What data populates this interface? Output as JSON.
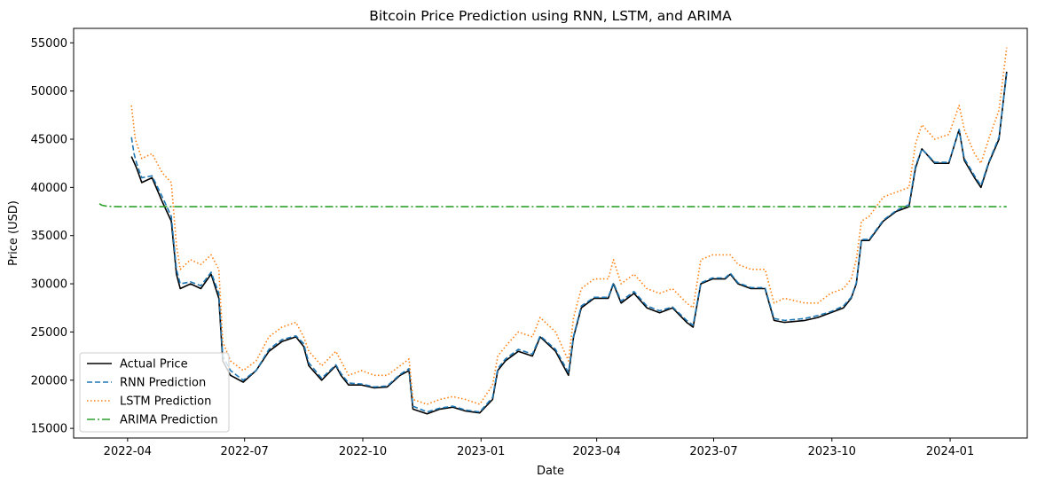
{
  "chart_data": {
    "type": "line",
    "title": "Bitcoin Price Prediction using RNN, LSTM, and ARIMA",
    "xlabel": "Date",
    "ylabel": "Price (USD)",
    "xlim": [
      "2022-02-18",
      "2024-03-01"
    ],
    "ylim": [
      14000,
      56500
    ],
    "x_ticks": [
      "2022-04-01",
      "2022-07-01",
      "2022-10-01",
      "2023-01-01",
      "2023-04-01",
      "2023-07-01",
      "2023-10-01",
      "2024-01-01"
    ],
    "x_tick_labels": [
      "2022-04",
      "2022-07",
      "2022-10",
      "2023-01",
      "2023-04",
      "2023-07",
      "2023-10",
      "2024-01"
    ],
    "y_ticks": [
      15000,
      20000,
      25000,
      30000,
      35000,
      40000,
      45000,
      50000,
      55000
    ],
    "y_tick_labels": [
      "15000",
      "20000",
      "25000",
      "30000",
      "35000",
      "40000",
      "45000",
      "50000",
      "55000"
    ],
    "grid": false,
    "legend_position": "lower-left",
    "series": [
      {
        "name": "Actual Price",
        "color": "#000000",
        "style": "solid",
        "x": [
          "2022-04-04",
          "2022-04-08",
          "2022-04-12",
          "2022-04-20",
          "2022-04-28",
          "2022-05-05",
          "2022-05-09",
          "2022-05-12",
          "2022-05-20",
          "2022-05-28",
          "2022-06-05",
          "2022-06-11",
          "2022-06-14",
          "2022-06-20",
          "2022-06-30",
          "2022-07-10",
          "2022-07-20",
          "2022-07-30",
          "2022-08-10",
          "2022-08-16",
          "2022-08-20",
          "2022-08-30",
          "2022-09-10",
          "2022-09-14",
          "2022-09-20",
          "2022-09-30",
          "2022-10-10",
          "2022-10-20",
          "2022-10-30",
          "2022-11-06",
          "2022-11-09",
          "2022-11-20",
          "2022-11-30",
          "2022-12-10",
          "2022-12-20",
          "2022-12-31",
          "2023-01-10",
          "2023-01-14",
          "2023-01-20",
          "2023-01-30",
          "2023-02-10",
          "2023-02-16",
          "2023-02-28",
          "2023-03-10",
          "2023-03-14",
          "2023-03-20",
          "2023-03-30",
          "2023-04-10",
          "2023-04-14",
          "2023-04-20",
          "2023-04-30",
          "2023-05-10",
          "2023-05-20",
          "2023-05-30",
          "2023-06-10",
          "2023-06-15",
          "2023-06-21",
          "2023-06-30",
          "2023-07-10",
          "2023-07-14",
          "2023-07-20",
          "2023-07-30",
          "2023-08-10",
          "2023-08-17",
          "2023-08-25",
          "2023-09-10",
          "2023-09-20",
          "2023-09-30",
          "2023-10-10",
          "2023-10-16",
          "2023-10-20",
          "2023-10-24",
          "2023-10-30",
          "2023-11-10",
          "2023-11-20",
          "2023-11-30",
          "2023-12-05",
          "2023-12-10",
          "2023-12-20",
          "2023-12-31",
          "2024-01-08",
          "2024-01-12",
          "2024-01-20",
          "2024-01-25",
          "2024-01-31",
          "2024-02-08",
          "2024-02-14"
        ],
        "values": [
          43200,
          42000,
          40500,
          41000,
          38500,
          36500,
          31000,
          29500,
          30000,
          29500,
          31000,
          28500,
          22000,
          20500,
          19800,
          21000,
          23000,
          24000,
          24500,
          23500,
          21500,
          20000,
          21500,
          20500,
          19500,
          19500,
          19200,
          19300,
          20500,
          21000,
          17000,
          16500,
          17000,
          17200,
          16800,
          16600,
          18000,
          21000,
          22000,
          23000,
          22500,
          24500,
          23000,
          20500,
          24500,
          27500,
          28500,
          28500,
          30000,
          28000,
          29000,
          27500,
          27000,
          27500,
          26000,
          25500,
          30000,
          30500,
          30500,
          31000,
          30000,
          29500,
          29500,
          26200,
          26000,
          26200,
          26500,
          27000,
          27500,
          28500,
          30000,
          34500,
          34500,
          36500,
          37500,
          38000,
          42000,
          44000,
          42500,
          42500,
          46000,
          42800,
          41000,
          40000,
          42500,
          45000,
          52000
        ]
      },
      {
        "name": "RNN Prediction",
        "color": "#1f77b4",
        "style": "dashed",
        "x": [
          "2022-04-04",
          "2022-04-06",
          "2022-04-08",
          "2022-04-12",
          "2022-04-20",
          "2022-04-28",
          "2022-05-05",
          "2022-05-09",
          "2022-05-12",
          "2022-05-20",
          "2022-05-28",
          "2022-06-05",
          "2022-06-11",
          "2022-06-14",
          "2022-06-20",
          "2022-06-30",
          "2022-07-10",
          "2022-07-20",
          "2022-07-30",
          "2022-08-10",
          "2022-08-16",
          "2022-08-20",
          "2022-08-30",
          "2022-09-10",
          "2022-09-14",
          "2022-09-20",
          "2022-09-30",
          "2022-10-10",
          "2022-10-20",
          "2022-10-30",
          "2022-11-06",
          "2022-11-09",
          "2022-11-20",
          "2022-11-30",
          "2022-12-10",
          "2022-12-20",
          "2022-12-31",
          "2023-01-10",
          "2023-01-14",
          "2023-01-20",
          "2023-01-30",
          "2023-02-10",
          "2023-02-16",
          "2023-02-28",
          "2023-03-10",
          "2023-03-14",
          "2023-03-20",
          "2023-03-30",
          "2023-04-10",
          "2023-04-14",
          "2023-04-20",
          "2023-04-30",
          "2023-05-10",
          "2023-05-20",
          "2023-05-30",
          "2023-06-10",
          "2023-06-15",
          "2023-06-21",
          "2023-06-30",
          "2023-07-10",
          "2023-07-14",
          "2023-07-20",
          "2023-07-30",
          "2023-08-10",
          "2023-08-17",
          "2023-08-25",
          "2023-09-10",
          "2023-09-20",
          "2023-09-30",
          "2023-10-10",
          "2023-10-16",
          "2023-10-20",
          "2023-10-24",
          "2023-10-30",
          "2023-11-10",
          "2023-11-20",
          "2023-11-30",
          "2023-12-05",
          "2023-12-10",
          "2023-12-20",
          "2023-12-31",
          "2024-01-08",
          "2024-01-12",
          "2024-01-20",
          "2024-01-25",
          "2024-01-31",
          "2024-02-08",
          "2024-02-14"
        ],
        "values": [
          45200,
          43500,
          42500,
          41000,
          41200,
          39000,
          37000,
          31500,
          30000,
          30200,
          29800,
          31200,
          29000,
          22500,
          21000,
          20000,
          21000,
          23200,
          24200,
          24600,
          23800,
          21800,
          20200,
          21600,
          20700,
          19700,
          19600,
          19300,
          19400,
          20600,
          21200,
          17300,
          16700,
          17100,
          17300,
          16900,
          16700,
          18200,
          21200,
          22200,
          23200,
          22700,
          24600,
          23200,
          20800,
          24600,
          27700,
          28600,
          28600,
          30100,
          28200,
          29200,
          27700,
          27200,
          27600,
          26200,
          25700,
          30100,
          30600,
          30600,
          31100,
          30100,
          29600,
          29600,
          26400,
          26200,
          26400,
          26700,
          27100,
          27700,
          28600,
          30100,
          34600,
          34600,
          36600,
          37600,
          38200,
          42200,
          44000,
          42600,
          42600,
          46000,
          43000,
          41200,
          40200,
          42600,
          45200,
          51800
        ]
      },
      {
        "name": "LSTM Prediction",
        "color": "#ff7f0e",
        "style": "dotted",
        "x": [
          "2022-04-04",
          "2022-04-07",
          "2022-04-12",
          "2022-04-20",
          "2022-04-28",
          "2022-05-05",
          "2022-05-09",
          "2022-05-12",
          "2022-05-20",
          "2022-05-28",
          "2022-06-05",
          "2022-06-11",
          "2022-06-14",
          "2022-06-20",
          "2022-06-30",
          "2022-07-10",
          "2022-07-20",
          "2022-07-30",
          "2022-08-10",
          "2022-08-16",
          "2022-08-20",
          "2022-08-30",
          "2022-09-10",
          "2022-09-14",
          "2022-09-20",
          "2022-09-30",
          "2022-10-10",
          "2022-10-20",
          "2022-10-30",
          "2022-11-06",
          "2022-11-09",
          "2022-11-20",
          "2022-11-30",
          "2022-12-10",
          "2022-12-20",
          "2022-12-31",
          "2023-01-10",
          "2023-01-14",
          "2023-01-20",
          "2023-01-30",
          "2023-02-10",
          "2023-02-16",
          "2023-02-28",
          "2023-03-10",
          "2023-03-14",
          "2023-03-20",
          "2023-03-30",
          "2023-04-10",
          "2023-04-14",
          "2023-04-20",
          "2023-04-30",
          "2023-05-10",
          "2023-05-20",
          "2023-05-30",
          "2023-06-10",
          "2023-06-15",
          "2023-06-21",
          "2023-06-30",
          "2023-07-10",
          "2023-07-14",
          "2023-07-20",
          "2023-07-30",
          "2023-08-10",
          "2023-08-17",
          "2023-08-25",
          "2023-09-10",
          "2023-09-20",
          "2023-09-30",
          "2023-10-10",
          "2023-10-16",
          "2023-10-20",
          "2023-10-24",
          "2023-10-30",
          "2023-11-10",
          "2023-11-20",
          "2023-11-30",
          "2023-12-05",
          "2023-12-10",
          "2023-12-20",
          "2023-12-31",
          "2024-01-08",
          "2024-01-12",
          "2024-01-20",
          "2024-01-25",
          "2024-01-31",
          "2024-02-08",
          "2024-02-14"
        ],
        "values": [
          48500,
          45000,
          43000,
          43500,
          41500,
          40500,
          34000,
          31500,
          32500,
          32000,
          33000,
          31500,
          24000,
          22000,
          21000,
          22000,
          24500,
          25500,
          26000,
          24500,
          23000,
          21500,
          23000,
          22000,
          20500,
          21000,
          20500,
          20500,
          21500,
          22200,
          18000,
          17500,
          18000,
          18300,
          18000,
          17500,
          19500,
          22500,
          23500,
          25000,
          24500,
          26500,
          25000,
          22000,
          26500,
          29500,
          30500,
          30500,
          32500,
          30000,
          31000,
          29500,
          29000,
          29500,
          28000,
          27500,
          32500,
          33000,
          33000,
          33000,
          32000,
          31500,
          31500,
          28000,
          28500,
          28000,
          28000,
          29000,
          29500,
          30500,
          32500,
          36500,
          37000,
          39000,
          39500,
          40000,
          44500,
          46500,
          45000,
          45500,
          48500,
          46000,
          43500,
          42500,
          45000,
          48000,
          54500
        ]
      },
      {
        "name": "ARIMA Prediction",
        "color": "#2ca02c",
        "style": "dashdot",
        "x": [
          "2022-03-10",
          "2022-03-12",
          "2022-03-16",
          "2022-03-25",
          "2024-02-14"
        ],
        "values": [
          38300,
          38150,
          38050,
          38000,
          38000
        ]
      }
    ]
  }
}
